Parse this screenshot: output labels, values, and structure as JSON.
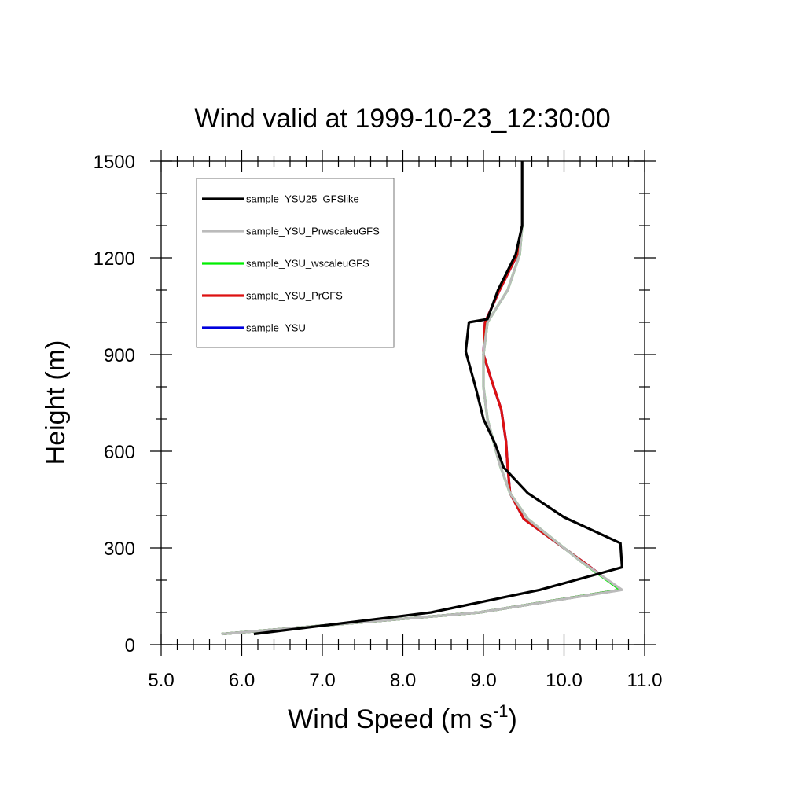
{
  "chart_data": {
    "type": "line",
    "title": "Wind valid at 1999-10-23_12:30:00",
    "xlabel": "Wind Speed (m s",
    "xlabel_sup": "-1",
    "xlabel_close": ")",
    "ylabel": "Height (m)",
    "xlim": [
      5.0,
      11.0
    ],
    "ylim": [
      0,
      1500
    ],
    "xticks": [
      5.0,
      6.0,
      7.0,
      8.0,
      9.0,
      10.0,
      11.0
    ],
    "xtick_labels": [
      "5.0",
      "6.0",
      "7.0",
      "8.0",
      "9.0",
      "10.0",
      "11.0"
    ],
    "yticks": [
      0,
      300,
      600,
      900,
      1200,
      1500
    ],
    "ytick_labels": [
      "0",
      "300",
      "600",
      "900",
      "1200",
      "1500"
    ],
    "grid": false,
    "legend_position": "top-left",
    "series": [
      {
        "name": "sample_YSU25_GFSlike",
        "color": "#000000",
        "x": [
          6.15,
          8.35,
          9.7,
          10.72,
          10.7,
          10.0,
          9.55,
          9.25,
          9.15,
          9.0,
          8.9,
          8.78,
          8.82,
          9.05,
          9.18,
          9.4,
          9.48,
          9.48,
          9.48
        ],
        "y": [
          33,
          100,
          170,
          240,
          315,
          395,
          470,
          550,
          620,
          700,
          800,
          910,
          1000,
          1010,
          1100,
          1210,
          1300,
          1400,
          1500
        ]
      },
      {
        "name": "sample_YSU_PrwscaleuGFS",
        "color": "#bbbbbb",
        "x": [
          5.75,
          8.95,
          10.72,
          10.2,
          9.55,
          9.33,
          9.2,
          9.05,
          9.0,
          9.0,
          9.05,
          9.3,
          9.45,
          9.48
        ],
        "y": [
          33,
          100,
          170,
          260,
          390,
          470,
          560,
          700,
          800,
          900,
          1000,
          1100,
          1210,
          1300
        ]
      },
      {
        "name": "sample_YSU_wscaleuGFS",
        "color": "#00ee00",
        "x": [
          5.75,
          8.95,
          10.7,
          10.2,
          9.55,
          9.33,
          9.2,
          9.05,
          9.0,
          9.0,
          9.05,
          9.3,
          9.45,
          9.48
        ],
        "y": [
          33,
          100,
          170,
          260,
          390,
          470,
          560,
          700,
          800,
          900,
          1000,
          1100,
          1210,
          1300
        ]
      },
      {
        "name": "sample_YSU_PrGFS",
        "color": "#dd1111",
        "x": [
          5.75,
          8.95,
          10.7,
          10.3,
          9.5,
          9.33,
          9.3,
          9.28,
          9.22,
          9.1,
          9.0,
          9.02,
          9.2,
          9.42,
          9.48
        ],
        "y": [
          33,
          100,
          170,
          245,
          390,
          470,
          550,
          630,
          730,
          820,
          900,
          1000,
          1100,
          1210,
          1300
        ]
      },
      {
        "name": "sample_YSU",
        "color": "#0000dd",
        "x": [
          5.75,
          8.95,
          10.7,
          10.3,
          9.5,
          9.33,
          9.3,
          9.28,
          9.22,
          9.1,
          9.0,
          9.02,
          9.2,
          9.42,
          9.48
        ],
        "y": [
          33,
          100,
          170,
          245,
          390,
          470,
          550,
          630,
          730,
          820,
          900,
          1000,
          1100,
          1210,
          1300
        ]
      }
    ]
  }
}
